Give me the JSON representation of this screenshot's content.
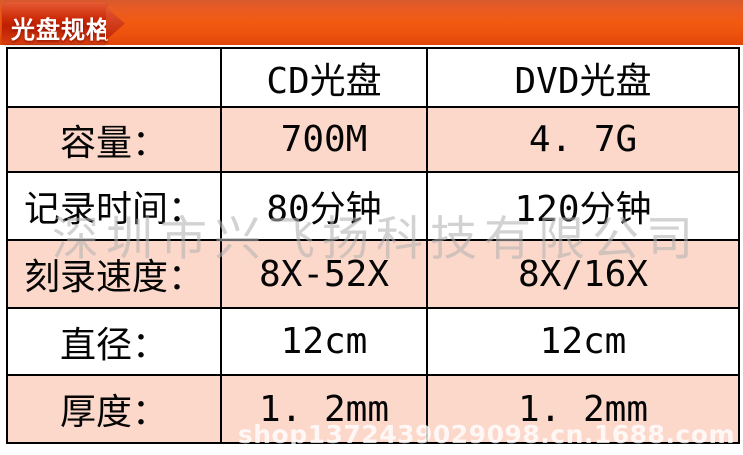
{
  "banner": {
    "title": "光盘规格"
  },
  "table": {
    "headers": {
      "blank": "",
      "cd": "CD光盘",
      "dvd": "DVD光盘"
    },
    "rows": [
      {
        "label": "容量：",
        "cd": "700M",
        "dvd": "4. 7G"
      },
      {
        "label": "记录时间：",
        "cd": "80分钟",
        "dvd": "120分钟"
      },
      {
        "label": "刻录速度：",
        "cd": "8X-52X",
        "dvd": "8X/16X"
      },
      {
        "label": "直径：",
        "cd": "12cm",
        "dvd": "12cm"
      },
      {
        "label": "厚度：",
        "cd": "1. 2mm",
        "dvd": "1. 2mm"
      }
    ]
  },
  "watermarks": {
    "company": "深圳市兴飞扬科技有限公司",
    "shop_url": "shop1372439029098.cn.1688.com"
  },
  "colors": {
    "banner_orange": "#f25a10",
    "banner_orange_dark": "#cf3a05",
    "badge_red": "#c52808",
    "row_pink": "#fcd8cb",
    "table_border": "#000000",
    "watermark_gray": "#b2b2b2",
    "watermark_url_white": "#ffffff"
  }
}
